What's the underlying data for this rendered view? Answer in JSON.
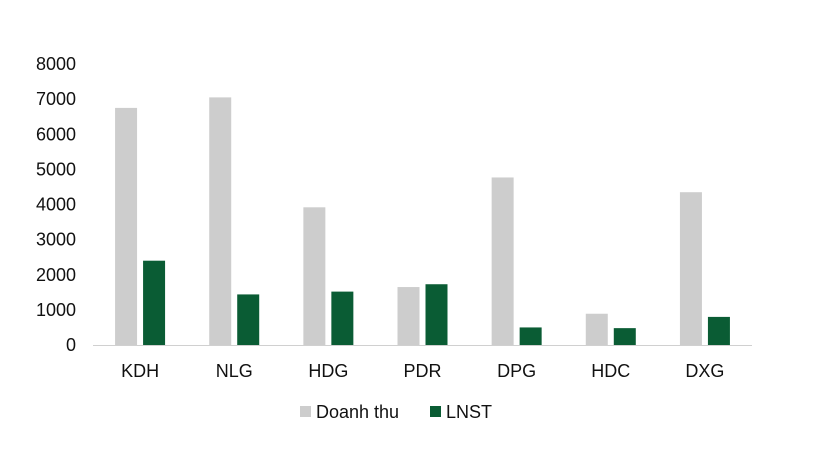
{
  "chart_data": {
    "type": "bar",
    "categories": [
      "KDH",
      "NLG",
      "HDG",
      "PDR",
      "DPG",
      "HDC",
      "DXG"
    ],
    "series": [
      {
        "name": "Doanh thu",
        "color": "#cdcdcd",
        "values": [
          6750,
          7050,
          3920,
          1650,
          4770,
          890,
          4350
        ]
      },
      {
        "name": "LNST",
        "color": "#0a5c34",
        "values": [
          2400,
          1440,
          1520,
          1730,
          500,
          480,
          800
        ]
      }
    ],
    "ylim": [
      0,
      8000
    ],
    "yticks": [
      "0",
      "1000",
      "2000",
      "3000",
      "4000",
      "5000",
      "6000",
      "7000",
      "8000"
    ],
    "grid": false,
    "legend": "bottom"
  }
}
